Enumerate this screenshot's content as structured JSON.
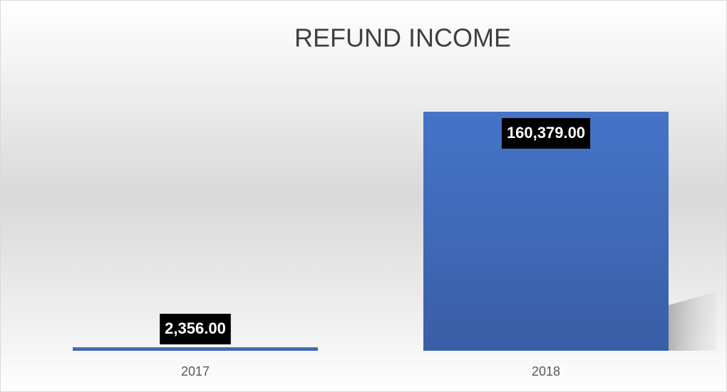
{
  "chart_data": {
    "type": "bar",
    "title": "REFUND INCOME",
    "categories": [
      "2017",
      "2018"
    ],
    "values": [
      2356,
      160379
    ],
    "value_labels": [
      "2,356.00",
      "160,379.00"
    ],
    "color": "#4472c4"
  }
}
